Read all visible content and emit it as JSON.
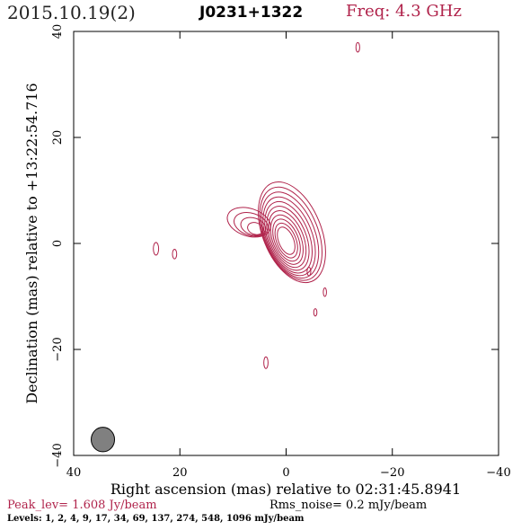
{
  "header": {
    "date": "2015.10.19(2)",
    "source": "J0231+1322",
    "frequency": "Freq: 4.3 GHz"
  },
  "footer": {
    "peak": "Peak_lev=  1.608 Jy/beam",
    "rms": "Rms_noise=  0.2 mJy/beam",
    "levels": "Levels:   1,    2,    4,    9,   17,   34,   69,  137,  274,  548,  1096 mJy/beam"
  },
  "colors": {
    "contour": "#b0234b",
    "beam": "#808080"
  },
  "chart_data": {
    "type": "contour",
    "xlabel": "Right ascension (mas) relative to 02:31:45.8941",
    "ylabel": "Declination (mas) relative to +13:22:54.716",
    "xlim": [
      40,
      -40
    ],
    "ylim": [
      -40,
      40
    ],
    "x_ticks": [
      40,
      20,
      0,
      -20,
      -40
    ],
    "y_ticks": [
      -40,
      -20,
      0,
      20,
      40
    ],
    "x_tick_labels": [
      "40",
      "20",
      "0",
      "−20",
      "−40"
    ],
    "y_tick_labels": [
      "−40",
      "−20",
      "0",
      "20",
      "40"
    ],
    "levels_mjy": [
      1,
      2,
      4,
      9,
      17,
      34,
      69,
      137,
      274,
      548,
      1096
    ],
    "core": {
      "x": 0,
      "y": 0.5
    },
    "beam": {
      "x": 34.5,
      "y": -37,
      "major": 4.2,
      "minor": 2.0
    },
    "components": [
      {
        "x": 24.5,
        "y": -1,
        "major": 1.2,
        "minor": 0.5
      },
      {
        "x": 21,
        "y": -2,
        "major": 0.9,
        "minor": 0.4
      },
      {
        "x": -13.5,
        "y": 37,
        "major": 0.9,
        "minor": 0.35
      },
      {
        "x": -4.3,
        "y": -5.3,
        "major": 0.8,
        "minor": 0.35
      },
      {
        "x": -7.3,
        "y": -9.2,
        "major": 0.8,
        "minor": 0.3
      },
      {
        "x": -5.5,
        "y": -13,
        "major": 0.7,
        "minor": 0.3
      },
      {
        "x": 3.8,
        "y": -22.5,
        "major": 1.1,
        "minor": 0.4
      }
    ]
  }
}
